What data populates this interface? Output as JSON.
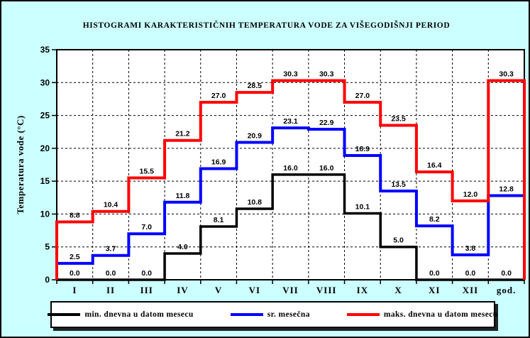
{
  "colors": {
    "background": "#CCFFFF",
    "plot_background": "#FFFFFF",
    "grid": "#000000",
    "series_min": "#000000",
    "series_sr": "#0000FF",
    "series_maks": "#FF0000"
  },
  "chart_data": {
    "type": "line",
    "subtype": "step-histogram",
    "title": "HISTOGRAMI KARAKTERISTIČNIH TEMPERATURA VODE ZA VIŠEGODIŠNJI PERIOD",
    "xlabel": "",
    "ylabel": "Temperatura vode (°C)",
    "ylim": [
      0,
      35
    ],
    "yticks": [
      0,
      5,
      10,
      15,
      20,
      25,
      30,
      35
    ],
    "grid": true,
    "legend_position": "bottom",
    "categories": [
      "I",
      "II",
      "III",
      "IV",
      "V",
      "VI",
      "VII",
      "VIII",
      "IX",
      "X",
      "XI",
      "XII",
      "god."
    ],
    "series": [
      {
        "name": "min. dnevna u datom mesecu",
        "color": "#000000",
        "values": [
          0.0,
          0.0,
          0.0,
          4.0,
          8.1,
          10.8,
          16.0,
          16.0,
          10.1,
          5.0,
          0.0,
          0.0,
          0.0
        ],
        "labels": [
          "0.0",
          "0.0",
          "0.0",
          "4.0",
          "8.1",
          "10.8",
          "16.0",
          "16.0",
          "10.1",
          "5.0",
          "0.0",
          "0.0",
          "0.0"
        ]
      },
      {
        "name": "sr. mesečna",
        "color": "#0000FF",
        "values": [
          2.5,
          3.7,
          7.0,
          11.8,
          16.9,
          20.9,
          23.1,
          22.9,
          18.9,
          13.5,
          8.2,
          3.8,
          12.8
        ],
        "labels": [
          "2.5",
          "3.7",
          "7.0",
          "11.8",
          "16.9",
          "20.9",
          "23.1",
          "22.9",
          "18.9",
          "13.5",
          "8.2",
          "3.8",
          "12.8"
        ]
      },
      {
        "name": "maks. dnevna u datom mesecu",
        "color": "#FF0000",
        "values": [
          8.8,
          10.4,
          15.5,
          21.2,
          27.0,
          28.5,
          30.3,
          30.3,
          27.0,
          23.5,
          16.4,
          12.0,
          30.3
        ],
        "labels": [
          "8.8",
          "10.4",
          "15.5",
          "21.2",
          "27.0",
          "28.5",
          "30.3",
          "30.3",
          "27.0",
          "23.5",
          "16.4",
          "12.0",
          "30.3"
        ]
      }
    ]
  }
}
